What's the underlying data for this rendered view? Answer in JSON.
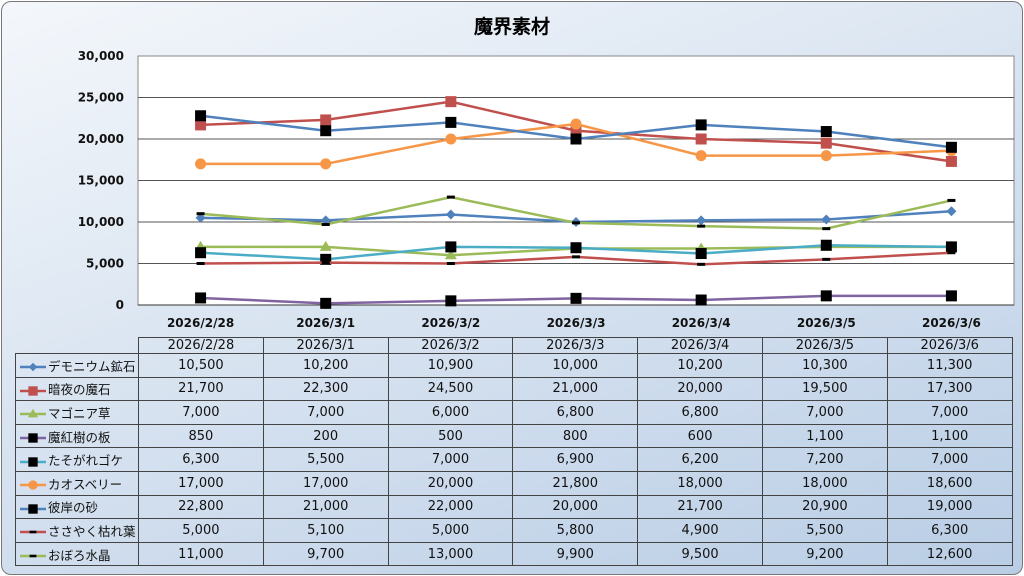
{
  "chart_data": {
    "type": "line",
    "title": "魔界素材",
    "categories": [
      "2026/2/28",
      "2026/3/1",
      "2026/3/2",
      "2026/3/3",
      "2026/3/4",
      "2026/3/5",
      "2026/3/6"
    ],
    "ylim": [
      0,
      30000
    ],
    "yticks": [
      "0",
      "5,000",
      "10,000",
      "15,000",
      "20,000",
      "25,000",
      "30,000"
    ],
    "grid": true,
    "legend": "data-table-bottom",
    "series": [
      {
        "name": "デモニウム鉱石",
        "color": "#4f81bd",
        "marker": "diamond",
        "marker_color": "#4f81bd",
        "values": [
          10500,
          10200,
          10900,
          10000,
          10200,
          10300,
          11300
        ],
        "labels": [
          "10,500",
          "10,200",
          "10,900",
          "10,000",
          "10,200",
          "10,300",
          "11,300"
        ]
      },
      {
        "name": "暗夜の魔石",
        "color": "#c0504d",
        "marker": "square",
        "marker_color": "#c0504d",
        "values": [
          21700,
          22300,
          24500,
          21000,
          20000,
          19500,
          17300
        ],
        "labels": [
          "21,700",
          "22,300",
          "24,500",
          "21,000",
          "20,000",
          "19,500",
          "17,300"
        ]
      },
      {
        "name": "マゴニア草",
        "color": "#9bbb59",
        "marker": "triangle",
        "marker_color": "#9bbb59",
        "values": [
          7000,
          7000,
          6000,
          6800,
          6800,
          7000,
          7000
        ],
        "labels": [
          "7,000",
          "7,000",
          "6,000",
          "6,800",
          "6,800",
          "7,000",
          "7,000"
        ]
      },
      {
        "name": "魔紅樹の板",
        "color": "#8064a2",
        "marker": "square",
        "marker_color": "#000000",
        "values": [
          850,
          200,
          500,
          800,
          600,
          1100,
          1100
        ],
        "labels": [
          "850",
          "200",
          "500",
          "800",
          "600",
          "1,100",
          "1,100"
        ]
      },
      {
        "name": "たそがれゴケ",
        "color": "#4bacc6",
        "marker": "square",
        "marker_color": "#000000",
        "values": [
          6300,
          5500,
          7000,
          6900,
          6200,
          7200,
          7000
        ],
        "labels": [
          "6,300",
          "5,500",
          "7,000",
          "6,900",
          "6,200",
          "7,200",
          "7,000"
        ]
      },
      {
        "name": "カオスベリー",
        "color": "#f79646",
        "marker": "circle",
        "marker_color": "#f79646",
        "values": [
          17000,
          17000,
          20000,
          21800,
          18000,
          18000,
          18600
        ],
        "labels": [
          "17,000",
          "17,000",
          "20,000",
          "21,800",
          "18,000",
          "18,000",
          "18,600"
        ]
      },
      {
        "name": "彼岸の砂",
        "color": "#4f81bd",
        "marker": "square",
        "marker_color": "#000000",
        "values": [
          22800,
          21000,
          22000,
          20000,
          21700,
          20900,
          19000
        ],
        "labels": [
          "22,800",
          "21,000",
          "22,000",
          "20,000",
          "21,700",
          "20,900",
          "19,000"
        ]
      },
      {
        "name": "ささやく枯れ葉",
        "color": "#c0504d",
        "marker": "dash",
        "marker_color": "#000000",
        "values": [
          5000,
          5100,
          5000,
          5800,
          4900,
          5500,
          6300
        ],
        "labels": [
          "5,000",
          "5,100",
          "5,000",
          "5,800",
          "4,900",
          "5,500",
          "6,300"
        ]
      },
      {
        "name": "おぼろ水晶",
        "color": "#9bbb59",
        "marker": "dash",
        "marker_color": "#000000",
        "values": [
          11000,
          9700,
          13000,
          9900,
          9500,
          9200,
          12600
        ],
        "labels": [
          "11,000",
          "9,700",
          "13,000",
          "9,900",
          "9,500",
          "9,200",
          "12,600"
        ]
      }
    ]
  }
}
